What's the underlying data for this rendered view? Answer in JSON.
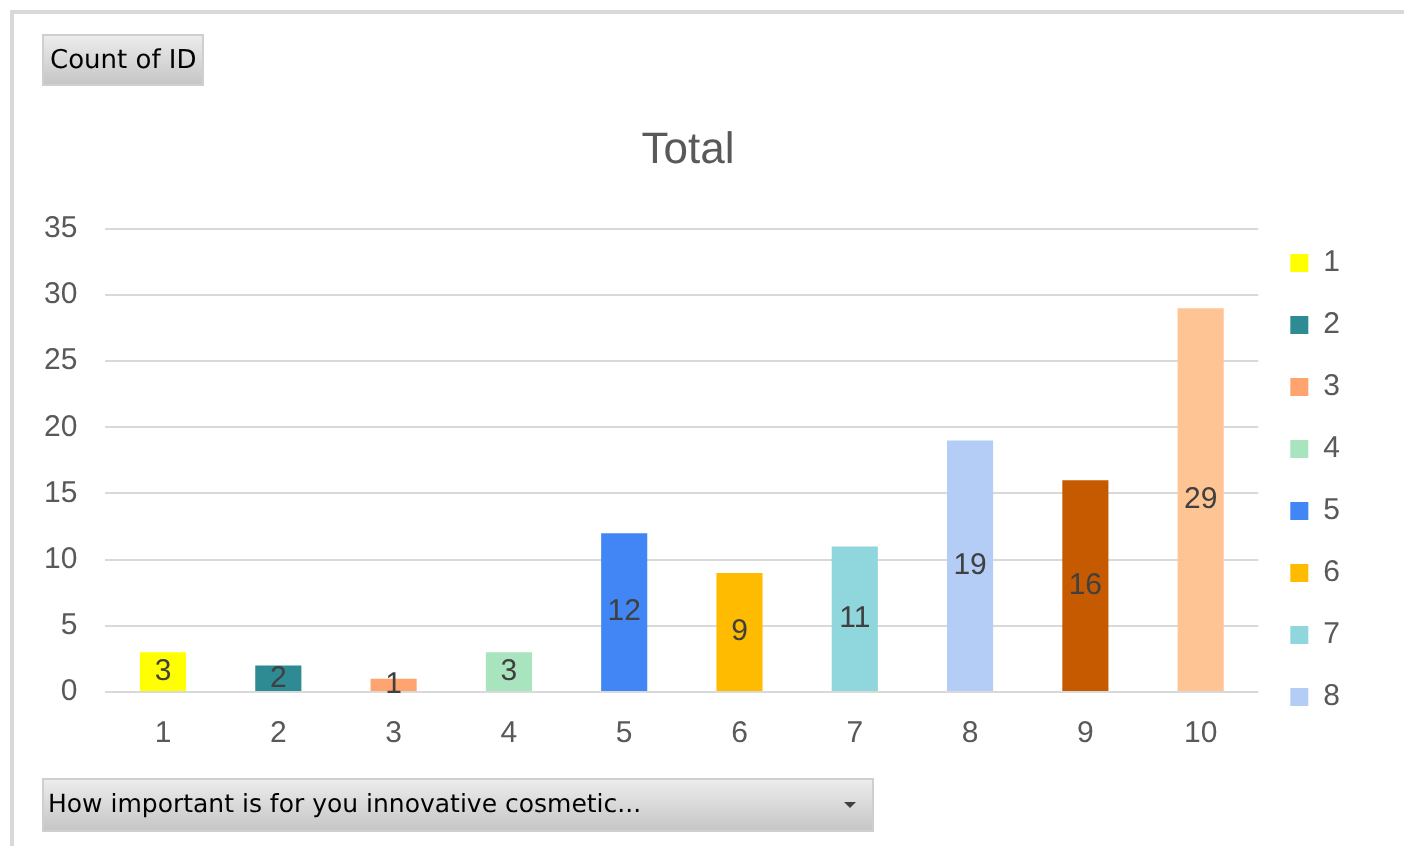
{
  "chart_data": {
    "type": "bar",
    "title": "Total",
    "xlabel": "How important is for you innovative cosmetic...",
    "annotations": [
      "Count of ID"
    ],
    "categories": [
      "1",
      "2",
      "3",
      "4",
      "5",
      "6",
      "7",
      "8",
      "9",
      "10"
    ],
    "series": [
      {
        "name": "1",
        "color": "#ffff00",
        "values": [
          3,
          null,
          null,
          null,
          null,
          null,
          null,
          null,
          null,
          null
        ]
      },
      {
        "name": "2",
        "color": "#2e8b93",
        "values": [
          null,
          2,
          null,
          null,
          null,
          null,
          null,
          null,
          null,
          null
        ]
      },
      {
        "name": "3",
        "color": "#ffa46e",
        "values": [
          null,
          null,
          1,
          null,
          null,
          null,
          null,
          null,
          null,
          null
        ]
      },
      {
        "name": "4",
        "color": "#a8e4bd",
        "values": [
          null,
          null,
          null,
          3,
          null,
          null,
          null,
          null,
          null,
          null
        ]
      },
      {
        "name": "5",
        "color": "#4285f4",
        "values": [
          null,
          null,
          null,
          null,
          12,
          null,
          null,
          null,
          null,
          null
        ]
      },
      {
        "name": "6",
        "color": "#ffbb00",
        "values": [
          null,
          null,
          null,
          null,
          null,
          9,
          null,
          null,
          null,
          null
        ]
      },
      {
        "name": "7",
        "color": "#8fd6dd",
        "values": [
          null,
          null,
          null,
          null,
          null,
          null,
          11,
          null,
          null,
          null
        ]
      },
      {
        "name": "8",
        "color": "#b3cdf7",
        "values": [
          null,
          null,
          null,
          null,
          null,
          null,
          null,
          19,
          null,
          null
        ]
      },
      {
        "color": "#c55a00",
        "values": [
          null,
          null,
          null,
          null,
          null,
          null,
          null,
          null,
          16,
          null
        ]
      },
      {
        "color": "#ffc494",
        "values": [
          null,
          null,
          null,
          null,
          null,
          null,
          null,
          null,
          null,
          29
        ]
      }
    ],
    "ylim": [
      0,
      35
    ],
    "yticks": [
      0,
      5,
      10,
      15,
      20,
      25,
      30,
      35
    ],
    "grid": "y",
    "legend": "right",
    "data_labels": true
  }
}
